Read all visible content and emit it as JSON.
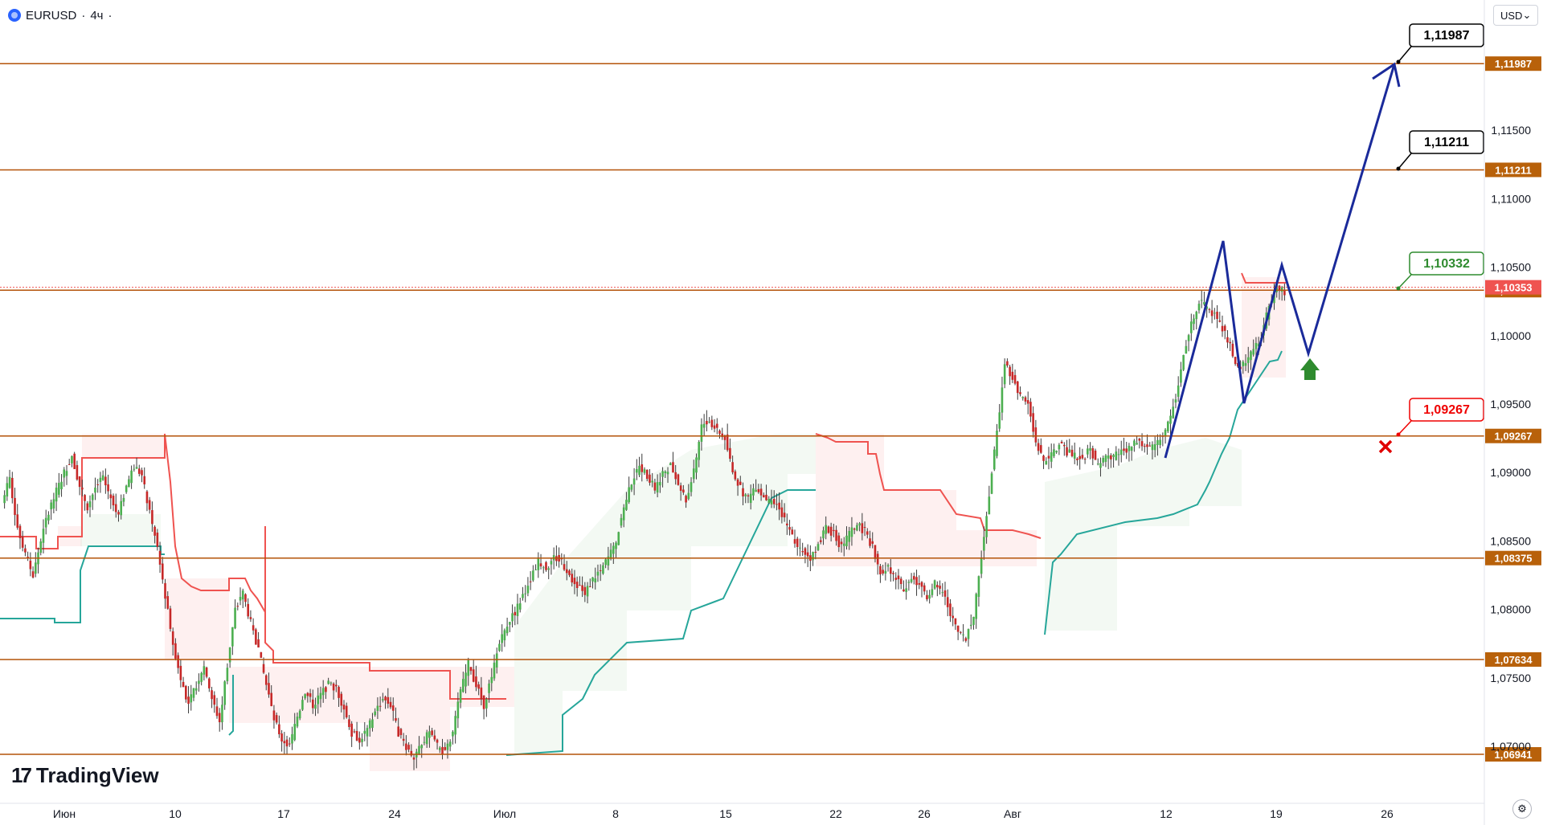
{
  "header": {
    "symbol": "EURUSD",
    "separator": "·",
    "interval": "4ч",
    "dot": "·"
  },
  "currency": {
    "label": "USD",
    "caret": "⌄"
  },
  "logo": {
    "mark": "17",
    "text": "TradingView"
  },
  "icons": {
    "symbol": "globe-flag-icon",
    "settings": "gear-icon",
    "stop": "red-x-icon",
    "entry": "green-up-arrow-icon"
  },
  "colors": {
    "level": "#b45309",
    "level_tag": "#b8610a",
    "bull": "#26a69a",
    "bear": "#ef5350",
    "zone_green": "#2e8b2e",
    "zone_red": "#ff0000",
    "projection": "#1a2a9a",
    "label_green": "#2e8b2e",
    "label_red": "#ef0000",
    "label_black": "#000000"
  },
  "chart_data": {
    "type": "candlestick",
    "symbol": "EURUSD",
    "interval": "4ч",
    "ylim": [
      1.0682,
      1.123
    ],
    "y_ticks": [
      "1,11500",
      "1,11000",
      "1,10500",
      "1,10000",
      "1,09500",
      "1,09000",
      "1,08500",
      "1,08000",
      "1,07500",
      "1,07000"
    ],
    "x_ticks": [
      "Июн",
      "10",
      "17",
      "24",
      "Июл",
      "8",
      "15",
      "22",
      "26",
      "Авг",
      "12",
      "19",
      "26"
    ],
    "levels": [
      {
        "value": "1,11987"
      },
      {
        "value": "1,11211"
      },
      {
        "value": "1,10332"
      },
      {
        "value": "1,09267"
      },
      {
        "value": "1,08375"
      },
      {
        "value": "1,07634"
      },
      {
        "value": "1,06941"
      }
    ],
    "current_price": "1,10353",
    "callouts": [
      {
        "text": "1,11987",
        "style": "black"
      },
      {
        "text": "1,11211",
        "style": "black"
      },
      {
        "text": "1,10332",
        "style": "green"
      },
      {
        "text": "1,09267",
        "style": "red"
      }
    ],
    "trend_candles": [
      1.088,
      1.0895,
      1.086,
      1.084,
      1.0825,
      1.085,
      1.0872,
      1.0886,
      1.09,
      1.0912,
      1.089,
      1.0875,
      1.0889,
      1.0896,
      1.0882,
      1.087,
      1.089,
      1.0905,
      1.0898,
      1.087,
      1.0845,
      1.081,
      1.0775,
      1.075,
      1.073,
      1.0745,
      1.076,
      1.0735,
      1.0718,
      1.076,
      1.08,
      1.0812,
      1.079,
      1.077,
      1.0745,
      1.072,
      1.0705,
      1.07,
      1.0722,
      1.074,
      1.073,
      1.0738,
      1.0745,
      1.0742,
      1.0728,
      1.071,
      1.0705,
      1.0712,
      1.0725,
      1.0735,
      1.073,
      1.071,
      1.07,
      1.0692,
      1.07,
      1.0712,
      1.07,
      1.0695,
      1.071,
      1.074,
      1.076,
      1.0745,
      1.073,
      1.0752,
      1.0775,
      1.079,
      1.0798,
      1.081,
      1.0822,
      1.0835,
      1.083,
      1.0838,
      1.0835,
      1.0825,
      1.0818,
      1.0812,
      1.0822,
      1.0828,
      1.0838,
      1.085,
      1.0875,
      1.0893,
      1.0905,
      1.0898,
      1.0888,
      1.09,
      1.0905,
      1.0892,
      1.088,
      1.09,
      1.0935,
      1.0938,
      1.093,
      1.0925,
      1.09,
      1.0888,
      1.088,
      1.089,
      1.0882,
      1.0878,
      1.0875,
      1.086,
      1.085,
      1.0843,
      1.0838,
      1.0848,
      1.086,
      1.0855,
      1.0845,
      1.0855,
      1.0862,
      1.0857,
      1.0845,
      1.0828,
      1.083,
      1.0822,
      1.0815,
      1.0825,
      1.0818,
      1.081,
      1.082,
      1.0812,
      1.0798,
      1.0785,
      1.078,
      1.0795,
      1.084,
      1.0885,
      1.093,
      1.098,
      1.097,
      1.0955,
      1.095,
      1.0922,
      1.0908,
      1.0912,
      1.092,
      1.0915,
      1.0912,
      1.091,
      1.0917,
      1.0905,
      1.091,
      1.0912,
      1.0915,
      1.0917,
      1.0922,
      1.092,
      1.0918,
      1.0925,
      1.0935,
      1.0955,
      1.0985,
      1.101,
      1.1025,
      1.102,
      1.1015,
      1.1005,
      1.0992,
      1.0975,
      1.098,
      1.099,
      1.1,
      1.1022,
      1.1035,
      1.1032
    ]
  }
}
